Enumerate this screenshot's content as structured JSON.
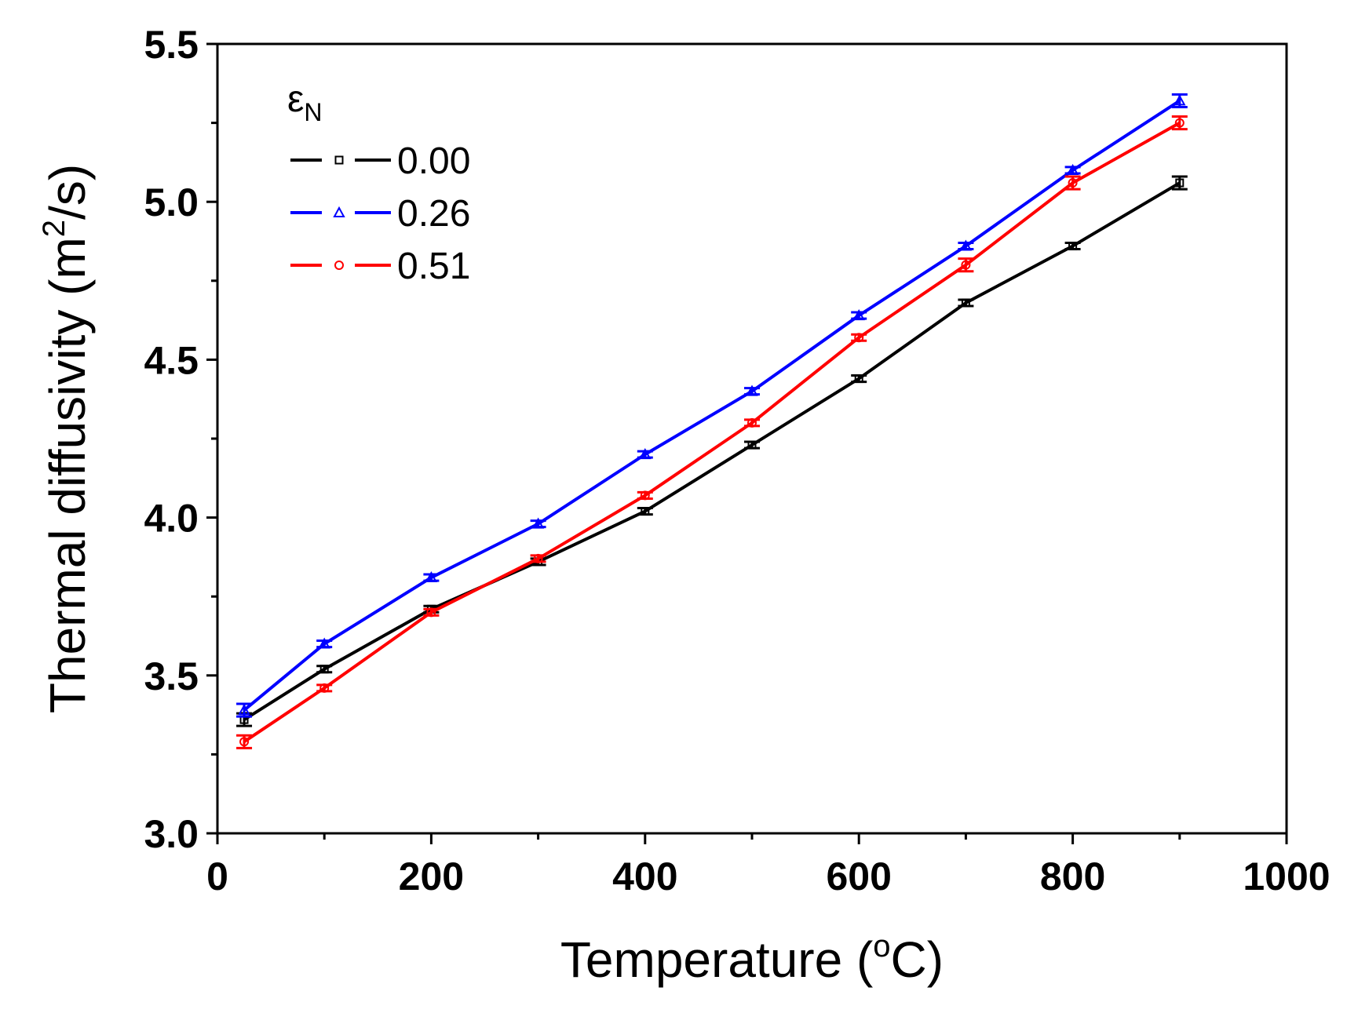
{
  "chart_data": {
    "type": "line",
    "title": "",
    "xlabel": "Temperature (",
    "xlabel_sup": "o",
    "xlabel_end": "C)",
    "ylabel": "Thermal diffusivity (m",
    "ylabel_sup": "2",
    "ylabel_end": "/s)",
    "xlim": [
      0,
      1000
    ],
    "ylim": [
      3.0,
      5.5
    ],
    "x_ticks": [
      0,
      200,
      400,
      600,
      800,
      1000
    ],
    "x_tick_labels": [
      "0",
      "200",
      "400",
      "600",
      "800",
      "1000"
    ],
    "x_minor_ticks": [
      100,
      300,
      500,
      700,
      900
    ],
    "y_ticks": [
      3.0,
      3.5,
      4.0,
      4.5,
      5.0,
      5.5
    ],
    "y_tick_labels": [
      "3.0",
      "3.5",
      "4.0",
      "4.5",
      "5.0",
      "5.5"
    ],
    "y_minor_ticks": [
      3.25,
      3.75,
      4.25,
      4.75,
      5.25
    ],
    "grid": false,
    "legend_title_main": "ε",
    "legend_title_sub": "N",
    "legend_position": "top-left",
    "x": [
      25,
      100,
      200,
      300,
      400,
      500,
      600,
      700,
      800,
      900
    ],
    "series": [
      {
        "name": "0.00",
        "color": "#000000",
        "marker": "square",
        "values": [
          3.36,
          3.52,
          3.71,
          3.86,
          4.02,
          4.23,
          4.44,
          4.68,
          4.86,
          5.06
        ],
        "errors": [
          0.02,
          0.01,
          0.01,
          0.01,
          0.01,
          0.01,
          0.01,
          0.01,
          0.01,
          0.02
        ]
      },
      {
        "name": "0.26",
        "color": "#0000ff",
        "marker": "triangle",
        "values": [
          3.39,
          3.6,
          3.81,
          3.98,
          4.2,
          4.4,
          4.64,
          4.86,
          5.1,
          5.32
        ],
        "errors": [
          0.02,
          0.01,
          0.01,
          0.01,
          0.01,
          0.01,
          0.01,
          0.01,
          0.01,
          0.02
        ]
      },
      {
        "name": "0.51",
        "color": "#ff0000",
        "marker": "circle",
        "values": [
          3.29,
          3.46,
          3.7,
          3.87,
          4.07,
          4.3,
          4.57,
          4.8,
          5.06,
          5.25
        ],
        "errors": [
          0.02,
          0.01,
          0.01,
          0.01,
          0.01,
          0.01,
          0.01,
          0.02,
          0.02,
          0.02
        ]
      }
    ]
  }
}
